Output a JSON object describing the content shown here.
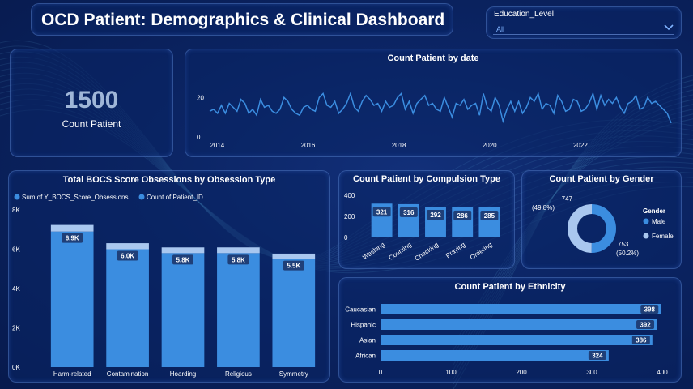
{
  "header": {
    "title": "OCD Patient: Demographics & Clinical Dashboard"
  },
  "slicer": {
    "label": "Education_Level",
    "value": "All",
    "icon": "chevron-down-icon"
  },
  "kpi": {
    "value": "1500",
    "label": "Count Patient"
  },
  "colors": {
    "bar": "#3b8de0",
    "bar_light": "#a9c7ef",
    "label_bg": "#1f3f78",
    "axis_text": "#ffffff",
    "line": "#3b8de0"
  },
  "chart_data": [
    {
      "id": "date",
      "type": "line",
      "title": "Count Patient by date",
      "x_ticks": [
        "2014",
        "2016",
        "2018",
        "2020",
        "2022"
      ],
      "y_ticks": [
        "0",
        "20"
      ],
      "ylim": [
        0,
        32
      ],
      "x_range": [
        "2013-10",
        "2024-01"
      ],
      "series": [
        {
          "values": [
            13,
            14,
            12,
            16,
            12,
            17,
            15,
            13,
            19,
            17,
            12,
            14,
            11,
            19,
            15,
            16,
            13,
            12,
            14,
            20,
            18,
            14,
            12,
            11,
            15,
            16,
            14,
            13,
            20,
            22,
            16,
            15,
            18,
            12,
            14,
            17,
            22,
            15,
            13,
            18,
            21,
            19,
            16,
            17,
            13,
            18,
            15,
            16,
            20,
            22,
            14,
            18,
            12,
            17,
            19,
            21,
            16,
            17,
            14,
            13,
            20,
            15,
            10,
            17,
            16,
            19,
            14,
            16,
            17,
            11,
            22,
            15,
            13,
            20,
            16,
            8,
            14,
            18,
            13,
            18,
            12,
            15,
            20,
            18,
            22,
            14,
            17,
            16,
            12,
            21,
            18,
            13,
            14,
            19,
            18,
            13,
            14,
            17,
            22,
            14,
            21,
            16,
            19,
            17,
            20,
            15,
            12,
            17,
            18,
            21,
            14,
            15,
            20,
            17,
            18,
            16,
            14,
            12,
            7
          ]
        }
      ]
    },
    {
      "id": "obsession",
      "type": "bar",
      "title": "Total BOCS Score Obsessions by Obsession Type",
      "legend": [
        "Sum of Y_BOCS_Score_Obsessions",
        "Count of Patient_ID"
      ],
      "categories": [
        "Harm-related",
        "Contamination",
        "Hoarding",
        "Religious",
        "Symmetry"
      ],
      "series": [
        {
          "name": "Sum of Y_BOCS_Score_Obsessions",
          "values": [
            6.9,
            6.0,
            5.8,
            5.8,
            5.5
          ]
        },
        {
          "name": "Count of Patient_ID",
          "values": [
            0.333,
            0.306,
            0.292,
            0.293,
            0.276
          ]
        }
      ],
      "data_labels": [
        "6.9K",
        "6.0K",
        "5.8K",
        "5.8K",
        "5.5K"
      ],
      "y_ticks": [
        "0K",
        "2K",
        "4K",
        "6K",
        "8K"
      ],
      "ylim": [
        0,
        8
      ]
    },
    {
      "id": "compulsion",
      "type": "bar",
      "title": "Count Patient by Compulsion Type",
      "categories": [
        "Washing",
        "Counting",
        "Checking",
        "Praying",
        "Ordering"
      ],
      "values": [
        321,
        316,
        292,
        286,
        285
      ],
      "data_labels": [
        "321",
        "316",
        "292",
        "286",
        "285"
      ],
      "y_ticks": [
        "0",
        "200",
        "400"
      ],
      "ylim": [
        0,
        400
      ]
    },
    {
      "id": "gender",
      "type": "pie",
      "title": "Count Patient by Gender",
      "legend_title": "Gender",
      "categories": [
        "Male",
        "Female"
      ],
      "values": [
        753,
        747
      ],
      "data_labels": [
        "753",
        "747"
      ],
      "percent_labels": [
        "(50.2%)",
        "(49.8%)"
      ]
    },
    {
      "id": "ethnicity",
      "type": "bar",
      "title": "Count Patient by Ethnicity",
      "categories": [
        "Caucasian",
        "Hispanic",
        "Asian",
        "African"
      ],
      "values": [
        398,
        392,
        386,
        324
      ],
      "data_labels": [
        "398",
        "392",
        "386",
        "324"
      ],
      "x_ticks": [
        "0",
        "100",
        "200",
        "300",
        "400"
      ],
      "xlim": [
        0,
        400
      ]
    }
  ]
}
